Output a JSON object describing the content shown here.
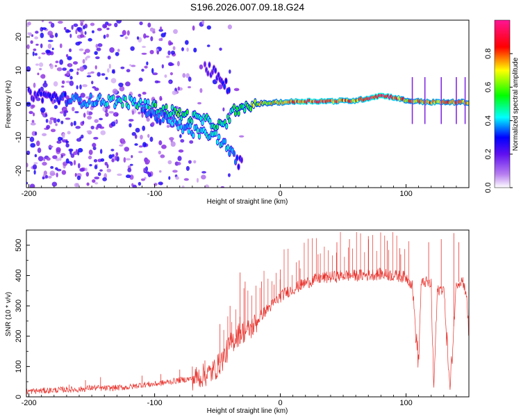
{
  "title": "S196.2026.007.09.18.G24",
  "chart_data": [
    {
      "type": "heatmap",
      "name": "spectrogram",
      "xlabel": "Height of straight line (km)",
      "ylabel": "Frequency (Hz)",
      "xlim": [
        -202,
        150
      ],
      "ylim": [
        -25,
        25
      ],
      "xticks": [
        -200,
        -100,
        0,
        100
      ],
      "yticks": [
        -20,
        -10,
        0,
        10,
        20
      ],
      "tick_labels_x": [
        "-200",
        "-100",
        "0",
        "100"
      ],
      "tick_labels_y": [
        "-20",
        "-10",
        "0",
        "10",
        "20"
      ],
      "colorbar": {
        "label": "Normalized spectral amplitude",
        "range": [
          0,
          1
        ],
        "ticks": [
          0.0,
          0.2,
          0.4,
          0.6,
          0.8
        ],
        "tick_labels": [
          "0.0",
          "0.2",
          "0.4",
          "0.6",
          "0.8"
        ],
        "colormap": [
          "#ffffff",
          "#8a2be2",
          "#0000ff",
          "#00ffff",
          "#00ff00",
          "#ffff00",
          "#ff0000",
          "#ff1493"
        ]
      },
      "ridges": [
        {
          "name": "main-track",
          "x": [
            -200,
            -180,
            -160,
            -140,
            -120,
            -100,
            -80,
            -60,
            -45,
            -35,
            -30,
            -20,
            0,
            20,
            40,
            60,
            80,
            90,
            100,
            120,
            150
          ],
          "y": [
            3,
            2,
            1,
            1,
            0.5,
            -1,
            -3,
            -5,
            -7,
            -1,
            -2,
            0,
            0.5,
            0.8,
            0.8,
            1,
            2.5,
            2,
            1,
            0.5,
            0.5
          ],
          "amplitude": [
            0.25,
            0.3,
            0.4,
            0.45,
            0.5,
            0.55,
            0.6,
            0.5,
            0.55,
            0.6,
            0.6,
            0.7,
            0.8,
            0.95,
            0.9,
            0.85,
            1.0,
            0.9,
            0.8,
            0.85,
            0.8
          ]
        },
        {
          "name": "secondary-track",
          "x": [
            -110,
            -90,
            -70,
            -50,
            -40,
            -35,
            -30
          ],
          "y": [
            -2,
            -5,
            -8,
            -10,
            -14,
            -17,
            -18
          ],
          "amplitude": [
            0.35,
            0.4,
            0.45,
            0.5,
            0.45,
            0.35,
            0.25
          ]
        },
        {
          "name": "upper-branch",
          "x": [
            -60,
            -50,
            -45,
            -40
          ],
          "y": [
            11,
            9,
            7,
            3
          ],
          "amplitude": [
            0.2,
            0.25,
            0.3,
            0.35
          ]
        }
      ]
    },
    {
      "type": "line",
      "name": "snr",
      "xlabel": "Height of straight line (km)",
      "ylabel": "SNR (10 * v/v)",
      "xlim": [
        -202,
        150
      ],
      "ylim": [
        0,
        550
      ],
      "xticks": [
        -200,
        -100,
        0,
        100
      ],
      "yticks": [
        0,
        100,
        200,
        300,
        400,
        500
      ],
      "tick_labels_x": [
        "-200",
        "-100",
        "0",
        "100"
      ],
      "tick_labels_y": [
        "0",
        "100",
        "200",
        "300",
        "400",
        "500"
      ],
      "color": "#e8312b",
      "x": [
        -202,
        -190,
        -180,
        -170,
        -160,
        -150,
        -140,
        -130,
        -120,
        -110,
        -100,
        -90,
        -80,
        -70,
        -60,
        -55,
        -50,
        -45,
        -40,
        -35,
        -30,
        -25,
        -20,
        -15,
        -10,
        -5,
        0,
        5,
        10,
        20,
        30,
        40,
        50,
        60,
        70,
        80,
        90,
        100,
        105,
        108,
        110,
        112,
        115,
        120,
        122,
        125,
        130,
        135,
        140,
        145,
        148,
        150
      ],
      "y": [
        18,
        20,
        22,
        24,
        24,
        30,
        28,
        30,
        32,
        40,
        42,
        48,
        55,
        60,
        72,
        80,
        100,
        130,
        170,
        200,
        215,
        220,
        240,
        270,
        290,
        310,
        330,
        345,
        355,
        375,
        390,
        395,
        400,
        400,
        402,
        405,
        400,
        395,
        370,
        200,
        110,
        370,
        380,
        370,
        20,
        350,
        360,
        20,
        375,
        385,
        340,
        200
      ],
      "spikes": [
        {
          "x": -168,
          "y": 40
        },
        {
          "x": -155,
          "y": 55
        },
        {
          "x": -143,
          "y": 65
        },
        {
          "x": -110,
          "y": 70
        },
        {
          "x": -95,
          "y": 75
        },
        {
          "x": -80,
          "y": 90
        },
        {
          "x": -70,
          "y": 100
        },
        {
          "x": -60,
          "y": 120
        },
        {
          "x": -48,
          "y": 240
        },
        {
          "x": -40,
          "y": 300
        },
        {
          "x": -32,
          "y": 410
        },
        {
          "x": -28,
          "y": 380
        },
        {
          "x": -15,
          "y": 380
        },
        {
          "x": -5,
          "y": 370
        },
        {
          "x": 0,
          "y": 420
        },
        {
          "x": 15,
          "y": 450
        },
        {
          "x": 30,
          "y": 470
        },
        {
          "x": 45,
          "y": 510
        },
        {
          "x": 55,
          "y": 520
        },
        {
          "x": 70,
          "y": 530
        },
        {
          "x": 85,
          "y": 515
        },
        {
          "x": 95,
          "y": 490
        },
        {
          "x": 118,
          "y": 510
        },
        {
          "x": 128,
          "y": 520
        },
        {
          "x": 138,
          "y": 540
        },
        {
          "x": 142,
          "y": 510
        }
      ]
    }
  ]
}
